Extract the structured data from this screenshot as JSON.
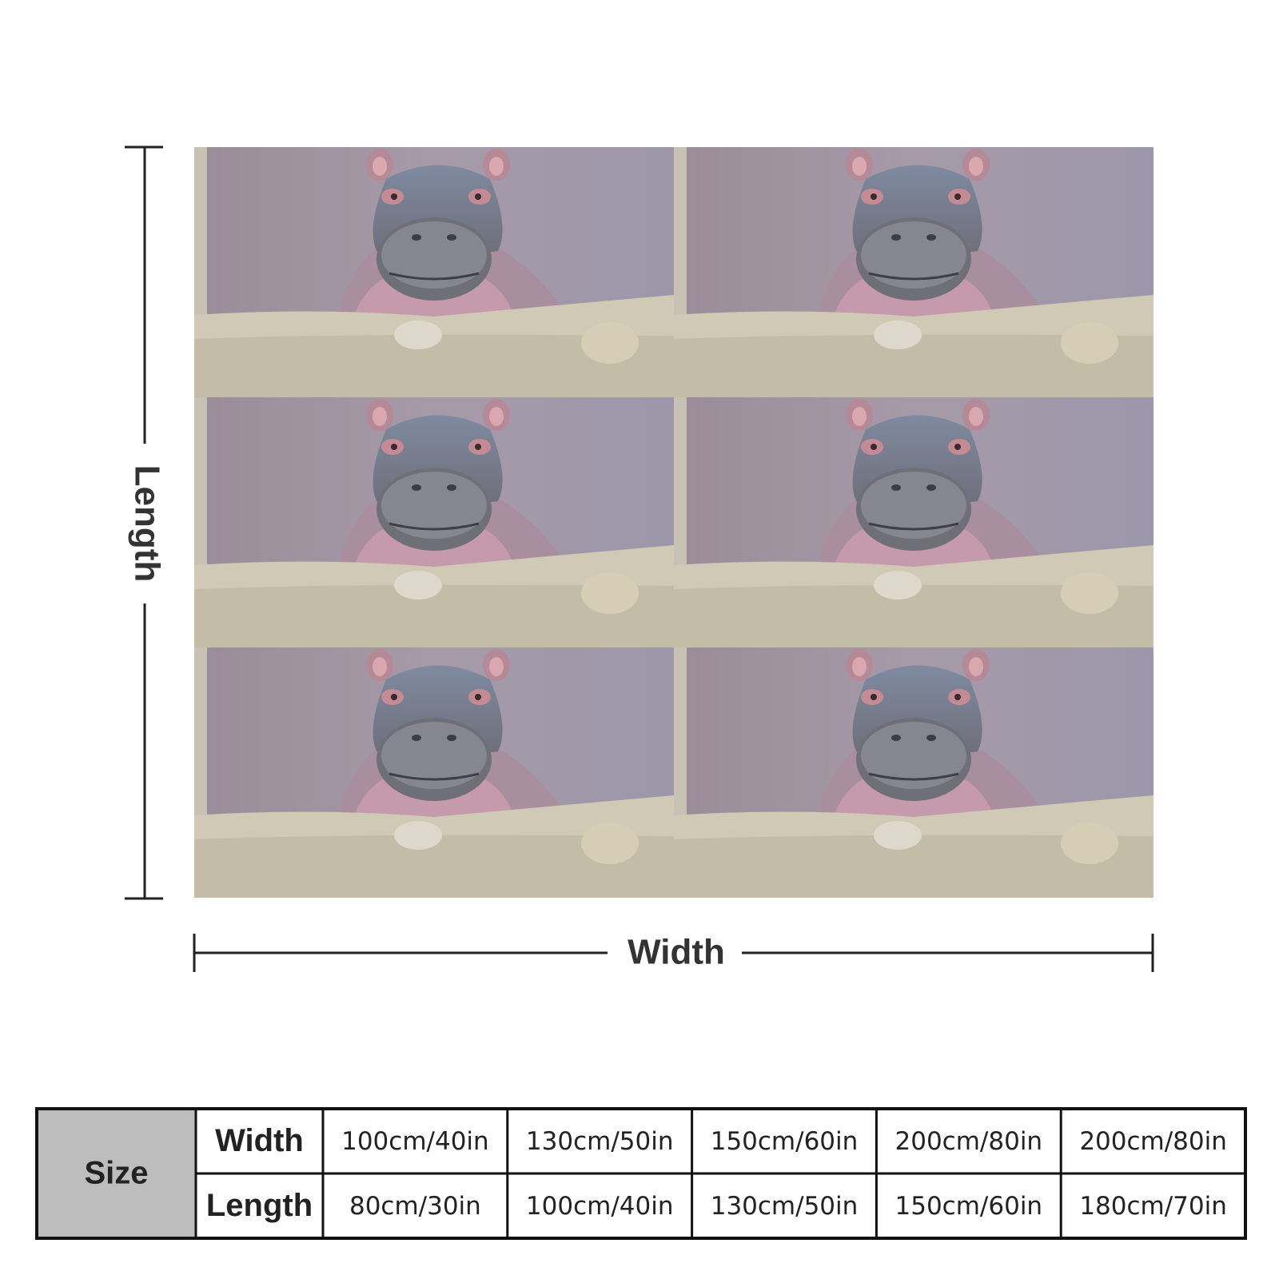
{
  "diagram": {
    "length_label": "Length",
    "width_label": "Width"
  },
  "size_table": {
    "title": "Size",
    "rows": [
      {
        "label": "Width",
        "values": [
          "100cm/40in",
          "130cm/50in",
          "150cm/60in",
          "200cm/80in",
          "200cm/80in"
        ]
      },
      {
        "label": "Length",
        "values": [
          "80cm/30in",
          "100cm/40in",
          "130cm/50in",
          "150cm/60in",
          "180cm/70in"
        ]
      }
    ]
  }
}
